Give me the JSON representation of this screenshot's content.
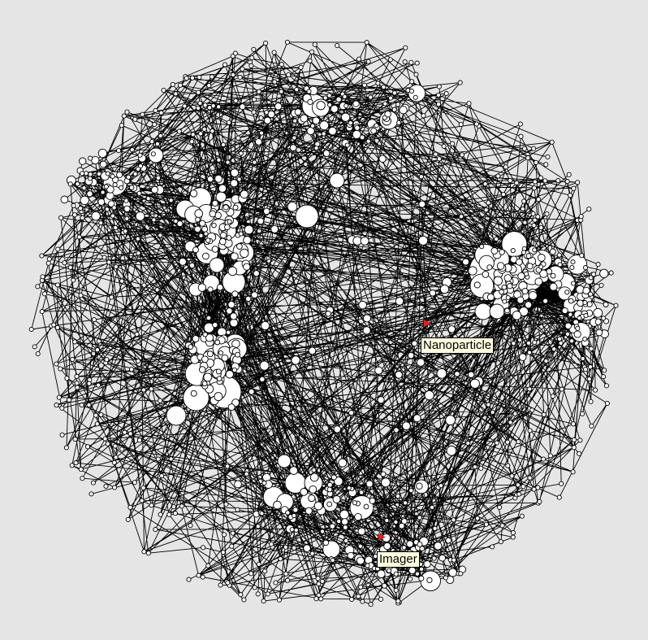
{
  "graph": {
    "background_color": "#e3e3e3",
    "edge_color": "#000000",
    "node_fill": "#ffffff",
    "node_stroke": "#000000",
    "flag_color": "#e02020",
    "highlighted_nodes": [
      {
        "id": "nanoparticle",
        "label": "Nanoparticle",
        "icon": "red-flag-icon"
      },
      {
        "id": "imager",
        "label": "Imager",
        "icon": "red-flag-icon"
      }
    ]
  }
}
